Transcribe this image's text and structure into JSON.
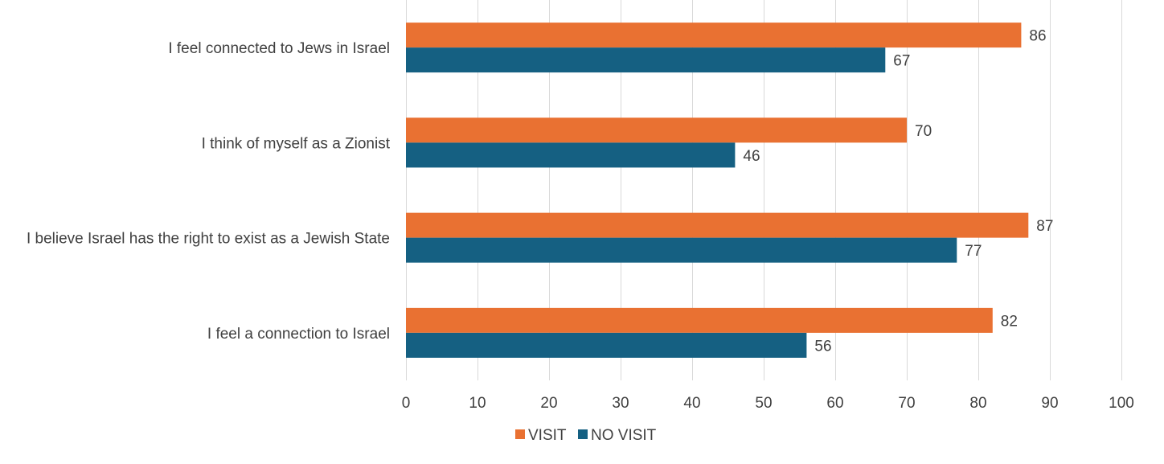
{
  "chart_data": {
    "type": "bar",
    "orientation": "horizontal",
    "categories": [
      "I feel connected to Jews in Israel",
      "I think of myself as a Zionist",
      "I believe Israel has the right to exist as a Jewish State",
      "I feel a connection to Israel"
    ],
    "series": [
      {
        "name": "VISIT",
        "color": "#E97132",
        "values": [
          86,
          70,
          87,
          82
        ]
      },
      {
        "name": "NO VISIT",
        "color": "#156082",
        "values": [
          67,
          46,
          77,
          56
        ]
      }
    ],
    "xlim": [
      0,
      100
    ],
    "xticks": [
      0,
      10,
      20,
      30,
      40,
      50,
      60,
      70,
      80,
      90,
      100
    ],
    "xlabel": "",
    "ylabel": "",
    "title": "",
    "grid": true,
    "legend_position": "bottom",
    "data_labels": true,
    "colors": {
      "grid": "#D9D9D9",
      "text": "#404040"
    }
  }
}
